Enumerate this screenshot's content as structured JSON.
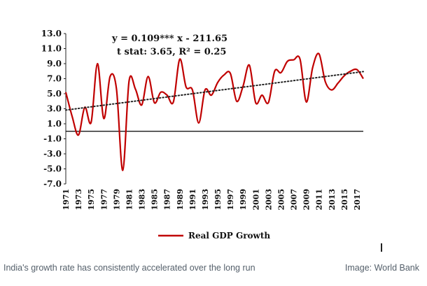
{
  "chart_data": {
    "type": "line",
    "title": "",
    "xlabel": "",
    "ylabel": "",
    "ylim": [
      -7,
      13
    ],
    "y_ticks": [
      "13.0",
      "11.0",
      "9.0",
      "7.0",
      "5.0",
      "3.0",
      "1.0",
      "-1.0",
      "-3.0",
      "-5.0",
      "-7.0"
    ],
    "x_tick_labels": [
      "1971",
      "1973",
      "1975",
      "1977",
      "1979",
      "1981",
      "1983",
      "1985",
      "1987",
      "1989",
      "1991",
      "1993",
      "1995",
      "1997",
      "1999",
      "2001",
      "2003",
      "2005",
      "2007",
      "2009",
      "2011",
      "2013",
      "2015",
      "2017"
    ],
    "grid": false,
    "legend_position": "bottom",
    "annotation_lines": [
      "y = 0.109*** x - 211.65",
      "t stat: 3.65,  R² = 0.25"
    ],
    "colors": {
      "series": "#c00000",
      "trend": "#222222",
      "zero_line": "#000000"
    },
    "series": [
      {
        "name": "Real GDP Growth",
        "x": [
          1971,
          1972,
          1973,
          1974,
          1975,
          1976,
          1977,
          1978,
          1979,
          1980,
          1981,
          1982,
          1983,
          1984,
          1985,
          1986,
          1987,
          1988,
          1989,
          1990,
          1991,
          1992,
          1993,
          1994,
          1995,
          1996,
          1997,
          1998,
          1999,
          2000,
          2001,
          2002,
          2003,
          2004,
          2005,
          2006,
          2007,
          2008,
          2009,
          2010,
          2011,
          2012,
          2013,
          2014,
          2015,
          2016,
          2017,
          2018
        ],
        "values": [
          5.2,
          2.0,
          -0.5,
          3.2,
          1.2,
          9.0,
          1.7,
          7.3,
          5.7,
          -5.2,
          6.7,
          5.6,
          3.5,
          7.3,
          3.8,
          5.2,
          4.8,
          3.9,
          9.6,
          5.9,
          5.5,
          1.1,
          5.5,
          4.8,
          6.5,
          7.5,
          7.7,
          4.0,
          6.0,
          8.8,
          3.8,
          4.8,
          3.8,
          8.0,
          7.8,
          9.3,
          9.5,
          9.6,
          3.9,
          8.5,
          10.3,
          6.6,
          5.5,
          6.4,
          7.4,
          8.0,
          8.2,
          7.0
        ]
      },
      {
        "name": "",
        "style": "dotted",
        "x": [
          1971,
          2018
        ],
        "values": [
          2.82,
          7.94
        ]
      }
    ]
  },
  "caption": {
    "left": "India's growth rate has consistently accelerated over the long run",
    "right": "Image: World Bank"
  }
}
